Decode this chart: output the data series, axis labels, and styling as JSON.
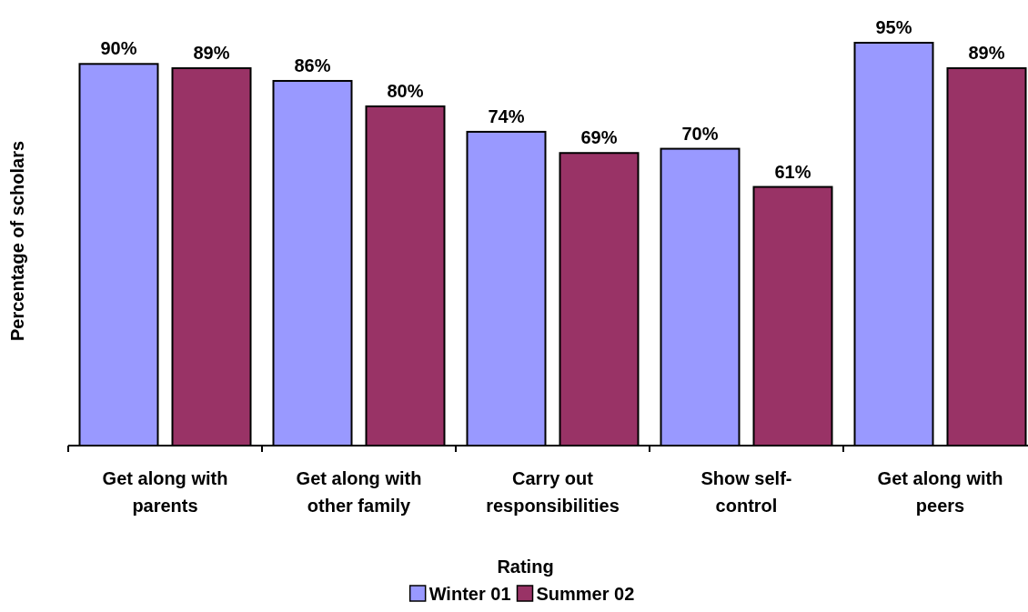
{
  "chart_data": {
    "type": "bar",
    "xlabel": "Rating",
    "ylabel": "Percentage of scholars",
    "categories": [
      "Get along with parents",
      "Get along with other family",
      "Carry out responsibilities",
      "Show self-control",
      "Get along with peers"
    ],
    "tick_labels": "x",
    "legend": "bottom",
    "series": [
      {
        "name": "Winter 01",
        "color": "#9999ff",
        "values": [
          90,
          86,
          74,
          70,
          95
        ],
        "value_labels": [
          "90%",
          "86%",
          "74%",
          "70%",
          "95%"
        ]
      },
      {
        "name": "Summer 02",
        "color": "#993366",
        "values": [
          89,
          80,
          69,
          61,
          89
        ],
        "value_labels": [
          "89%",
          "80%",
          "69%",
          "61%",
          "89%"
        ]
      }
    ]
  }
}
